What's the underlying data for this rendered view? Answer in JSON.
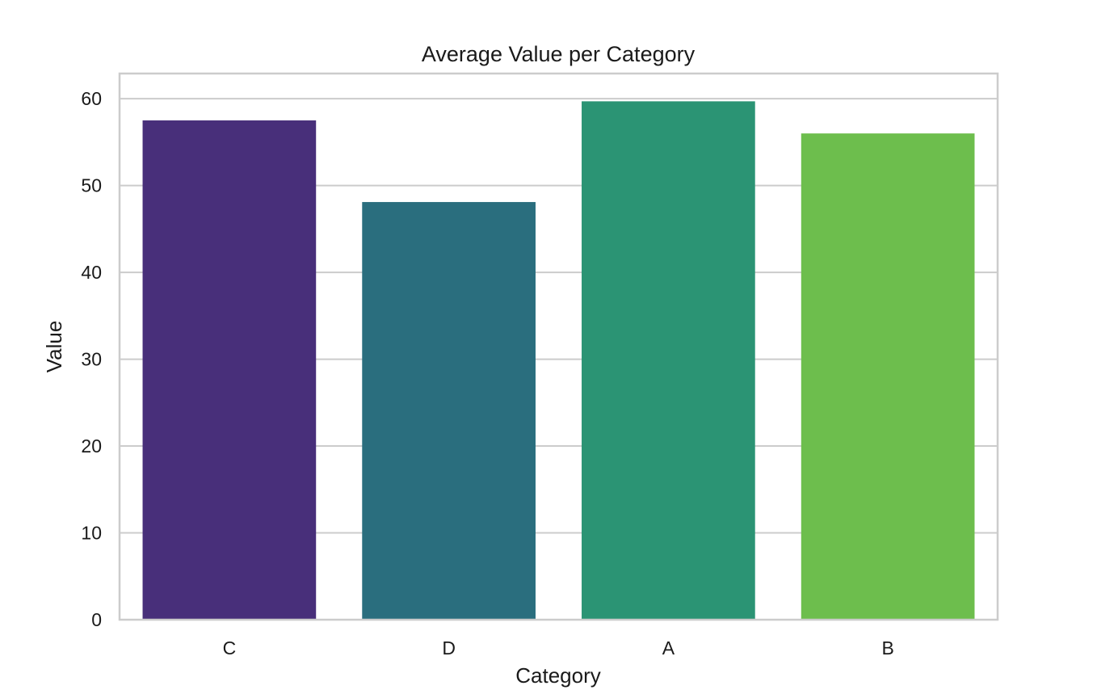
{
  "chart_data": {
    "type": "bar",
    "title": "Average Value per Category",
    "xlabel": "Category",
    "ylabel": "Value",
    "categories": [
      "C",
      "D",
      "A",
      "B"
    ],
    "values": [
      57.5,
      48.1,
      59.7,
      56.0
    ],
    "colors": [
      "#482f7a",
      "#2a6e7e",
      "#2b9474",
      "#6dbe4d"
    ],
    "ylim": [
      0,
      62.9
    ],
    "yticks": [
      0,
      10,
      20,
      30,
      40,
      50,
      60
    ],
    "grid": true,
    "legend": "none"
  }
}
